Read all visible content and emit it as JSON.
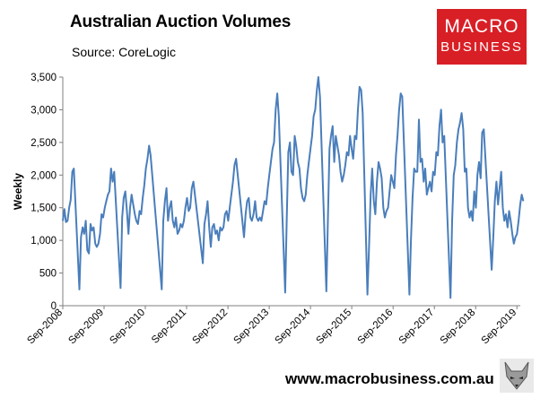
{
  "header": {
    "title": "Australian Auction Volumes",
    "source": "Source: CoreLogic"
  },
  "logo": {
    "line1": "MACRO",
    "line2": "BUSINESS",
    "color": "#d91f26"
  },
  "footer": {
    "website": "www.macrobusiness.com.au",
    "mascot_icon": "fox-icon"
  },
  "colors": {
    "series": "#4a7ebb",
    "axis": "#7f7f7f"
  },
  "chart_data": {
    "type": "line",
    "title": "Australian Auction Volumes",
    "ylabel": "Weekly",
    "xlabel": "",
    "ylim": [
      0,
      3500
    ],
    "xlim": [
      "2008-09-01",
      "2019-10-01"
    ],
    "grid": false,
    "legend": "none",
    "y_ticks": [
      "0",
      "500",
      "1,000",
      "1,500",
      "2,000",
      "2,500",
      "3,000",
      "3,500"
    ],
    "x_ticks": [
      "Sep-2008",
      "Sep-2009",
      "Sep-2010",
      "Sep-2011",
      "Sep-2012",
      "Sep-2013",
      "Sep-2014",
      "Sep-2015",
      "Sep-2016",
      "Sep-2017",
      "Sep-2018",
      "Sep-2019"
    ],
    "series": [
      {
        "points": [
          [
            "2008-09-01",
            1300
          ],
          [
            "2008-09-15",
            1480
          ],
          [
            "2008-09-29",
            1280
          ],
          [
            "2008-10-13",
            1300
          ],
          [
            "2008-10-27",
            1500
          ],
          [
            "2008-11-10",
            1620
          ],
          [
            "2008-11-24",
            2050
          ],
          [
            "2008-12-08",
            2100
          ],
          [
            "2009-01-26",
            250
          ],
          [
            "2009-02-09",
            1050
          ],
          [
            "2009-02-23",
            1200
          ],
          [
            "2009-03-09",
            1100
          ],
          [
            "2009-03-23",
            1300
          ],
          [
            "2009-04-06",
            850
          ],
          [
            "2009-04-20",
            800
          ],
          [
            "2009-05-04",
            1250
          ],
          [
            "2009-05-18",
            1150
          ],
          [
            "2009-06-01",
            1200
          ],
          [
            "2009-06-15",
            950
          ],
          [
            "2009-06-29",
            900
          ],
          [
            "2009-07-13",
            950
          ],
          [
            "2009-07-27",
            1100
          ],
          [
            "2009-08-10",
            1400
          ],
          [
            "2009-08-24",
            1350
          ],
          [
            "2009-09-07",
            1500
          ],
          [
            "2009-09-21",
            1600
          ],
          [
            "2009-10-05",
            1700
          ],
          [
            "2009-10-19",
            1750
          ],
          [
            "2009-11-02",
            2100
          ],
          [
            "2009-11-16",
            1900
          ],
          [
            "2009-11-30",
            2050
          ],
          [
            "2010-01-25",
            270
          ],
          [
            "2010-02-08",
            1350
          ],
          [
            "2010-02-22",
            1650
          ],
          [
            "2010-03-08",
            1750
          ],
          [
            "2010-03-22",
            1450
          ],
          [
            "2010-04-05",
            1100
          ],
          [
            "2010-04-19",
            1500
          ],
          [
            "2010-05-03",
            1700
          ],
          [
            "2010-05-17",
            1550
          ],
          [
            "2010-05-31",
            1400
          ],
          [
            "2010-06-14",
            1300
          ],
          [
            "2010-06-28",
            1250
          ],
          [
            "2010-07-12",
            1450
          ],
          [
            "2010-07-26",
            1400
          ],
          [
            "2010-08-09",
            1650
          ],
          [
            "2010-08-23",
            1850
          ],
          [
            "2010-09-06",
            2100
          ],
          [
            "2010-09-20",
            2250
          ],
          [
            "2010-10-04",
            2450
          ],
          [
            "2010-10-18",
            2300
          ],
          [
            "2011-01-24",
            250
          ],
          [
            "2011-02-07",
            1300
          ],
          [
            "2011-02-21",
            1600
          ],
          [
            "2011-03-07",
            1800
          ],
          [
            "2011-03-21",
            1300
          ],
          [
            "2011-04-04",
            1500
          ],
          [
            "2011-04-18",
            1600
          ],
          [
            "2011-05-02",
            1300
          ],
          [
            "2011-05-16",
            1200
          ],
          [
            "2011-05-30",
            1350
          ],
          [
            "2011-06-13",
            1100
          ],
          [
            "2011-06-27",
            1150
          ],
          [
            "2011-07-11",
            1250
          ],
          [
            "2011-07-25",
            1200
          ],
          [
            "2011-08-08",
            1300
          ],
          [
            "2011-08-22",
            1500
          ],
          [
            "2011-09-05",
            1650
          ],
          [
            "2011-09-19",
            1450
          ],
          [
            "2011-10-03",
            1500
          ],
          [
            "2011-10-17",
            1800
          ],
          [
            "2011-10-31",
            1900
          ],
          [
            "2012-01-23",
            650
          ],
          [
            "2012-02-06",
            1250
          ],
          [
            "2012-02-20",
            1400
          ],
          [
            "2012-03-05",
            1600
          ],
          [
            "2012-03-19",
            1200
          ],
          [
            "2012-04-02",
            900
          ],
          [
            "2012-04-16",
            1200
          ],
          [
            "2012-04-30",
            1250
          ],
          [
            "2012-05-14",
            1100
          ],
          [
            "2012-05-28",
            1150
          ],
          [
            "2012-06-11",
            1000
          ],
          [
            "2012-06-25",
            1200
          ],
          [
            "2012-07-09",
            1150
          ],
          [
            "2012-07-23",
            1200
          ],
          [
            "2012-08-06",
            1400
          ],
          [
            "2012-08-20",
            1450
          ],
          [
            "2012-09-03",
            1300
          ],
          [
            "2012-09-17",
            1500
          ],
          [
            "2012-10-01",
            1700
          ],
          [
            "2012-10-15",
            1900
          ],
          [
            "2012-10-29",
            2150
          ],
          [
            "2012-11-12",
            2250
          ],
          [
            "2013-01-21",
            1050
          ],
          [
            "2013-02-04",
            1400
          ],
          [
            "2013-02-18",
            1600
          ],
          [
            "2013-03-04",
            1650
          ],
          [
            "2013-03-18",
            1350
          ],
          [
            "2013-04-01",
            1300
          ],
          [
            "2013-04-15",
            1400
          ],
          [
            "2013-04-29",
            1600
          ],
          [
            "2013-05-13",
            1350
          ],
          [
            "2013-05-27",
            1300
          ],
          [
            "2013-06-10",
            1350
          ],
          [
            "2013-06-24",
            1300
          ],
          [
            "2013-07-08",
            1450
          ],
          [
            "2013-07-22",
            1600
          ],
          [
            "2013-08-05",
            1550
          ],
          [
            "2013-08-19",
            1800
          ],
          [
            "2013-09-02",
            2000
          ],
          [
            "2013-09-16",
            2200
          ],
          [
            "2013-09-30",
            2400
          ],
          [
            "2013-10-14",
            2500
          ],
          [
            "2013-10-28",
            3000
          ],
          [
            "2013-11-11",
            3250
          ],
          [
            "2013-11-25",
            2900
          ],
          [
            "2014-01-20",
            200
          ],
          [
            "2014-02-03",
            1300
          ],
          [
            "2014-02-17",
            2350
          ],
          [
            "2014-03-03",
            2500
          ],
          [
            "2014-03-17",
            2050
          ],
          [
            "2014-03-31",
            2000
          ],
          [
            "2014-04-14",
            2600
          ],
          [
            "2014-04-28",
            2450
          ],
          [
            "2014-05-12",
            2200
          ],
          [
            "2014-05-26",
            2100
          ],
          [
            "2014-06-09",
            1800
          ],
          [
            "2014-06-23",
            1650
          ],
          [
            "2014-07-07",
            1600
          ],
          [
            "2014-07-21",
            1700
          ],
          [
            "2014-08-04",
            2000
          ],
          [
            "2014-08-18",
            2200
          ],
          [
            "2014-09-01",
            2400
          ],
          [
            "2014-09-15",
            2600
          ],
          [
            "2014-09-29",
            2900
          ],
          [
            "2014-10-13",
            3000
          ],
          [
            "2014-10-27",
            3300
          ],
          [
            "2014-11-10",
            3500
          ],
          [
            "2014-11-24",
            3200
          ],
          [
            "2015-01-19",
            220
          ],
          [
            "2015-02-02",
            1300
          ],
          [
            "2015-02-16",
            2400
          ],
          [
            "2015-03-02",
            2600
          ],
          [
            "2015-03-16",
            2750
          ],
          [
            "2015-03-30",
            2200
          ],
          [
            "2015-04-13",
            2600
          ],
          [
            "2015-04-27",
            2450
          ],
          [
            "2015-05-11",
            2300
          ],
          [
            "2015-05-25",
            2050
          ],
          [
            "2015-06-08",
            1900
          ],
          [
            "2015-06-22",
            2000
          ],
          [
            "2015-07-06",
            2150
          ],
          [
            "2015-07-20",
            2350
          ],
          [
            "2015-08-03",
            2300
          ],
          [
            "2015-08-17",
            2600
          ],
          [
            "2015-08-31",
            2400
          ],
          [
            "2015-09-14",
            2250
          ],
          [
            "2015-09-28",
            2600
          ],
          [
            "2015-10-12",
            2550
          ],
          [
            "2015-10-26",
            3000
          ],
          [
            "2015-11-09",
            3350
          ],
          [
            "2015-11-23",
            3300
          ],
          [
            "2015-12-07",
            2950
          ],
          [
            "2016-01-18",
            170
          ],
          [
            "2016-02-01",
            900
          ],
          [
            "2016-02-15",
            1700
          ],
          [
            "2016-02-29",
            2100
          ],
          [
            "2016-03-14",
            1600
          ],
          [
            "2016-03-28",
            1400
          ],
          [
            "2016-04-11",
            1900
          ],
          [
            "2016-04-25",
            2200
          ],
          [
            "2016-05-09",
            2100
          ],
          [
            "2016-05-23",
            1950
          ],
          [
            "2016-06-06",
            1500
          ],
          [
            "2016-06-20",
            1350
          ],
          [
            "2016-07-04",
            1450
          ],
          [
            "2016-07-18",
            1500
          ],
          [
            "2016-08-01",
            1750
          ],
          [
            "2016-08-15",
            2000
          ],
          [
            "2016-08-29",
            1900
          ],
          [
            "2016-09-12",
            1800
          ],
          [
            "2016-09-26",
            2300
          ],
          [
            "2016-10-10",
            2600
          ],
          [
            "2016-10-24",
            3000
          ],
          [
            "2016-11-07",
            3250
          ],
          [
            "2016-11-21",
            3200
          ],
          [
            "2017-01-23",
            170
          ],
          [
            "2017-02-06",
            1000
          ],
          [
            "2017-02-20",
            1650
          ],
          [
            "2017-03-06",
            2100
          ],
          [
            "2017-03-20",
            2050
          ],
          [
            "2017-04-03",
            2050
          ],
          [
            "2017-04-17",
            2850
          ],
          [
            "2017-05-01",
            2200
          ],
          [
            "2017-05-15",
            2250
          ],
          [
            "2017-05-29",
            1900
          ],
          [
            "2017-06-12",
            2100
          ],
          [
            "2017-06-26",
            1700
          ],
          [
            "2017-07-10",
            1800
          ],
          [
            "2017-07-24",
            1900
          ],
          [
            "2017-08-07",
            1750
          ],
          [
            "2017-08-21",
            2050
          ],
          [
            "2017-09-04",
            2000
          ],
          [
            "2017-09-18",
            2350
          ],
          [
            "2017-10-02",
            2300
          ],
          [
            "2017-10-16",
            2750
          ],
          [
            "2017-10-30",
            3000
          ],
          [
            "2017-11-13",
            2500
          ],
          [
            "2017-11-27",
            2600
          ],
          [
            "2018-01-22",
            120
          ],
          [
            "2018-02-05",
            1300
          ],
          [
            "2018-02-19",
            2000
          ],
          [
            "2018-03-05",
            2150
          ],
          [
            "2018-03-19",
            2500
          ],
          [
            "2018-04-02",
            2700
          ],
          [
            "2018-04-16",
            2800
          ],
          [
            "2018-04-30",
            2950
          ],
          [
            "2018-05-14",
            2700
          ],
          [
            "2018-05-28",
            2050
          ],
          [
            "2018-06-11",
            2100
          ],
          [
            "2018-06-25",
            1500
          ],
          [
            "2018-07-09",
            1350
          ],
          [
            "2018-07-23",
            1450
          ],
          [
            "2018-08-06",
            1300
          ],
          [
            "2018-08-20",
            1750
          ],
          [
            "2018-09-03",
            1500
          ],
          [
            "2018-09-17",
            2000
          ],
          [
            "2018-10-01",
            2200
          ],
          [
            "2018-10-15",
            1950
          ],
          [
            "2018-10-29",
            2650
          ],
          [
            "2018-11-12",
            2700
          ],
          [
            "2019-01-21",
            550
          ],
          [
            "2019-02-04",
            1050
          ],
          [
            "2019-02-18",
            1600
          ],
          [
            "2019-03-04",
            1900
          ],
          [
            "2019-03-18",
            1550
          ],
          [
            "2019-04-01",
            1800
          ],
          [
            "2019-04-15",
            2050
          ],
          [
            "2019-04-29",
            1500
          ],
          [
            "2019-05-13",
            1300
          ],
          [
            "2019-05-27",
            1400
          ],
          [
            "2019-06-10",
            1200
          ],
          [
            "2019-06-24",
            1450
          ],
          [
            "2019-07-08",
            1300
          ],
          [
            "2019-07-22",
            1100
          ],
          [
            "2019-08-05",
            950
          ],
          [
            "2019-08-19",
            1050
          ],
          [
            "2019-09-02",
            1100
          ],
          [
            "2019-09-16",
            1300
          ],
          [
            "2019-09-30",
            1550
          ],
          [
            "2019-10-14",
            1700
          ],
          [
            "2019-10-28",
            1600
          ]
        ]
      }
    ]
  }
}
